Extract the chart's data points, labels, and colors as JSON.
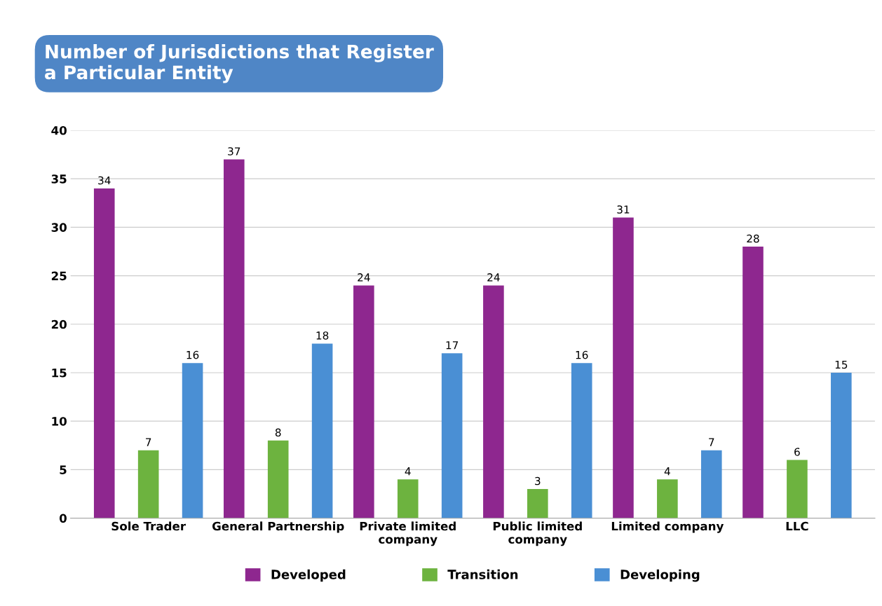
{
  "chart_data": {
    "type": "bar",
    "title": "Number of Jurisdictions that Register\na Particular Entity",
    "categories": [
      "Sole Trader",
      "General Partnership",
      "Private limited\ncompany",
      "Public limited\ncompany",
      "Limited company",
      "LLC"
    ],
    "series": [
      {
        "name": "Developed",
        "color": "#8e278f",
        "values": [
          34,
          37,
          24,
          24,
          31,
          28
        ]
      },
      {
        "name": "Transition",
        "color": "#6db33f",
        "values": [
          7,
          8,
          4,
          3,
          4,
          6
        ]
      },
      {
        "name": "Developing",
        "color": "#4a8fd4",
        "values": [
          16,
          18,
          17,
          16,
          7,
          15
        ]
      }
    ],
    "ylim": [
      0,
      40
    ],
    "yticks": [
      0,
      5,
      10,
      15,
      20,
      25,
      30,
      35,
      40
    ],
    "grid": "y",
    "legend": "bottom",
    "data_labels": true
  }
}
